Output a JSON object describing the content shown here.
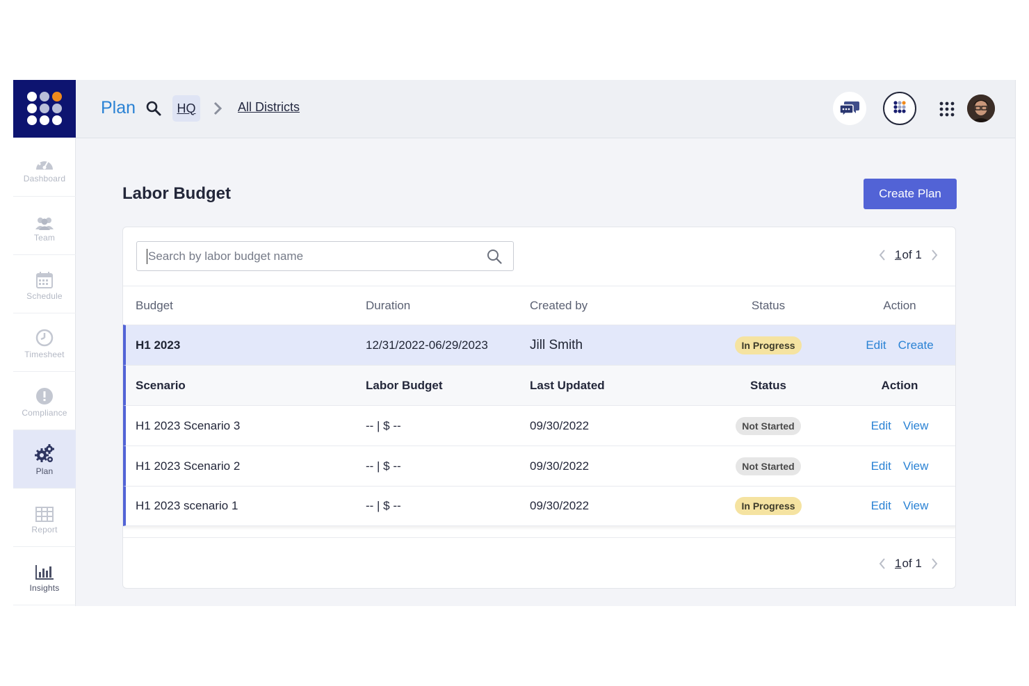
{
  "header": {
    "app_title": "Plan",
    "breadcrumb": [
      {
        "label": "HQ"
      },
      {
        "label": "All Districts"
      }
    ]
  },
  "sidebar": {
    "items": [
      {
        "label": "Dashboard",
        "icon": "dashboard-gauge-icon"
      },
      {
        "label": "Team",
        "icon": "team-icon"
      },
      {
        "label": "Schedule",
        "icon": "calendar-icon"
      },
      {
        "label": "Timesheet",
        "icon": "clock-icon"
      },
      {
        "label": "Compliance",
        "icon": "alert-icon"
      },
      {
        "label": "Plan",
        "icon": "gears-icon",
        "active": true
      },
      {
        "label": "Report",
        "icon": "table-icon"
      },
      {
        "label": "Insights",
        "icon": "bar-chart-icon"
      }
    ]
  },
  "page": {
    "title": "Labor Budget",
    "create_button": "Create Plan"
  },
  "search": {
    "placeholder": "Search by labor budget name"
  },
  "pagination": {
    "current": "1",
    "of_label": "of 1"
  },
  "table": {
    "columns": [
      "Budget",
      "Duration",
      "Created by",
      "Status",
      "Action"
    ],
    "budget": {
      "name": "H1 2023",
      "duration": "12/31/2022-06/29/2023",
      "created_by": "Jill Smith",
      "status": "In Progress",
      "actions": [
        "Edit",
        "Create"
      ]
    },
    "scenario_columns": [
      "Scenario",
      "Labor Budget",
      "Last Updated",
      "Status",
      "Action"
    ],
    "scenarios": [
      {
        "name": "H1 2023 Scenario 3",
        "labor_budget": "-- | $ --",
        "last_updated": "09/30/2022",
        "status": "Not Started",
        "actions": [
          "Edit",
          "View"
        ]
      },
      {
        "name": "H1 2023 Scenario 2",
        "labor_budget": "-- | $ --",
        "last_updated": "09/30/2022",
        "status": "Not Started",
        "actions": [
          "Edit",
          "View"
        ]
      },
      {
        "name": "H1 2023 scenario 1",
        "labor_budget": "-- | $ --",
        "last_updated": "09/30/2022",
        "status": "In Progress",
        "actions": [
          "Edit",
          "View"
        ]
      }
    ]
  },
  "colors": {
    "brand_navy": "#0d1470",
    "accent": "#5263d6",
    "link": "#2a82d4",
    "status_in_progress": "#f5e3a1",
    "status_not_started": "#e6e6e6"
  }
}
